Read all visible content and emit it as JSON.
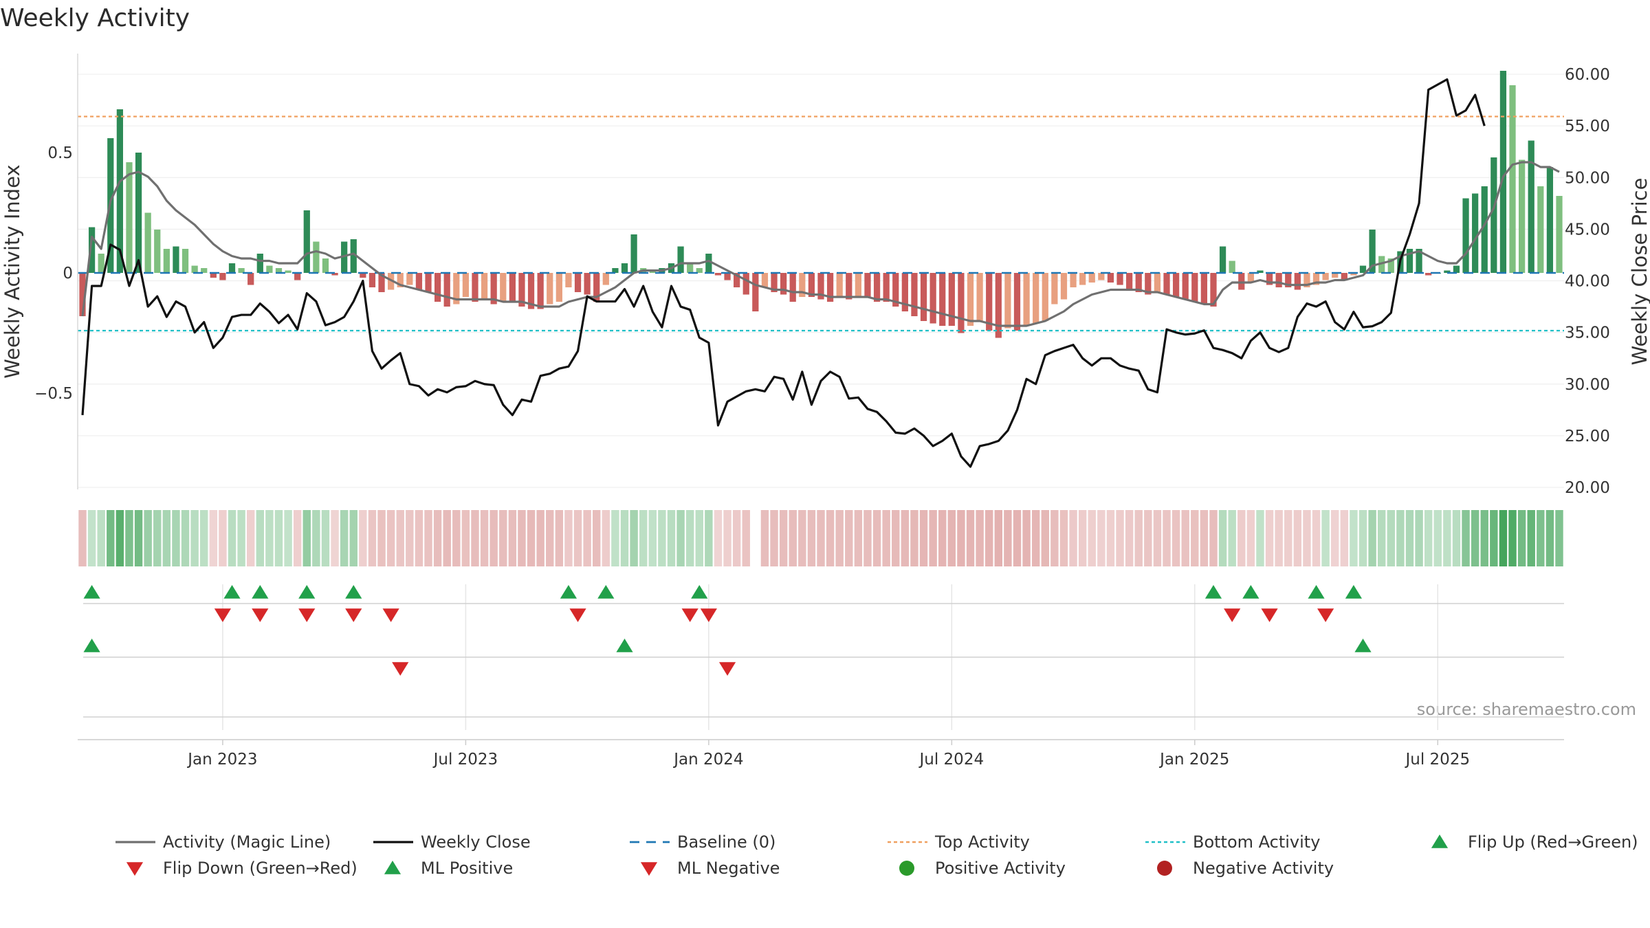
{
  "chart_data": {
    "type": "bar",
    "title": "Weekly Activity",
    "ylabel_left": "Weekly Activity Index",
    "ylabel_right": "Weekly Close Price",
    "source": "source: sharemaestro.com",
    "x_ticks": [
      {
        "label": "Jan 2023",
        "week": 15
      },
      {
        "label": "Jul 2023",
        "week": 41
      },
      {
        "label": "Jan 2024",
        "week": 67
      },
      {
        "label": "Jul 2024",
        "week": 93
      },
      {
        "label": "Jan 2025",
        "week": 119
      },
      {
        "label": "Jul 2025",
        "week": 145
      }
    ],
    "left_axis": {
      "ylim": [
        -0.9,
        0.9
      ],
      "ticks": [
        {
          "v": 0.5,
          "label": "0.5"
        },
        {
          "v": 0,
          "label": "0"
        },
        {
          "v": -0.5,
          "label": "−0.5"
        }
      ]
    },
    "right_axis": {
      "ylim": [
        20,
        60
      ],
      "ticks": [
        {
          "v": 60,
          "label": "60.00"
        },
        {
          "v": 55,
          "label": "55.00"
        },
        {
          "v": 50,
          "label": "50.00"
        },
        {
          "v": 45,
          "label": "45.00"
        },
        {
          "v": 40,
          "label": "40.00"
        },
        {
          "v": 35,
          "label": "35.00"
        },
        {
          "v": 30,
          "label": "30.00"
        },
        {
          "v": 25,
          "label": "25.00"
        },
        {
          "v": 20,
          "label": "20.00"
        }
      ]
    },
    "top_activity": 0.65,
    "bottom_activity": -0.24,
    "activity_bars": [
      -0.18,
      0.19,
      0.08,
      0.56,
      0.68,
      0.46,
      0.5,
      0.25,
      0.18,
      0.1,
      0.11,
      0.1,
      0.03,
      0.02,
      -0.02,
      -0.03,
      0.04,
      0.02,
      -0.05,
      0.08,
      0.03,
      0.02,
      0.01,
      -0.03,
      0.26,
      0.13,
      0.06,
      -0.01,
      0.13,
      0.14,
      -0.02,
      -0.06,
      -0.08,
      -0.07,
      -0.06,
      -0.05,
      -0.07,
      -0.08,
      -0.12,
      -0.14,
      -0.13,
      -0.1,
      -0.12,
      -0.11,
      -0.13,
      -0.12,
      -0.12,
      -0.14,
      -0.15,
      -0.15,
      -0.13,
      -0.12,
      -0.06,
      -0.08,
      -0.09,
      -0.12,
      -0.05,
      0.02,
      0.04,
      0.16,
      0.02,
      0.01,
      0.02,
      0.04,
      0.11,
      0.04,
      0.02,
      0.08,
      -0.01,
      -0.03,
      -0.06,
      -0.09,
      -0.16,
      -0.06,
      -0.08,
      -0.09,
      -0.12,
      -0.1,
      -0.1,
      -0.11,
      -0.12,
      -0.1,
      -0.11,
      -0.1,
      -0.1,
      -0.12,
      -0.12,
      -0.14,
      -0.16,
      -0.18,
      -0.2,
      -0.21,
      -0.22,
      -0.22,
      -0.25,
      -0.22,
      -0.2,
      -0.24,
      -0.27,
      -0.23,
      -0.24,
      -0.22,
      -0.21,
      -0.2,
      -0.13,
      -0.11,
      -0.06,
      -0.05,
      -0.04,
      -0.03,
      -0.04,
      -0.05,
      -0.07,
      -0.08,
      -0.09,
      -0.08,
      -0.09,
      -0.1,
      -0.11,
      -0.12,
      -0.13,
      -0.14,
      0.11,
      0.05,
      -0.07,
      -0.04,
      0.01,
      -0.05,
      -0.06,
      -0.06,
      -0.07,
      -0.06,
      -0.05,
      -0.03,
      -0.02,
      -0.03,
      -0.01,
      0.03,
      0.18,
      0.07,
      0.06,
      0.09,
      0.1,
      0.1,
      -0.01,
      0.0,
      0.01,
      0.03,
      0.31,
      0.33,
      0.36,
      0.48,
      0.84,
      0.78,
      0.47,
      0.55,
      0.36,
      0.44,
      0.32
    ],
    "magic_line": [
      -0.18,
      0.15,
      0.1,
      0.3,
      0.38,
      0.41,
      0.42,
      0.4,
      0.36,
      0.3,
      0.26,
      0.23,
      0.2,
      0.16,
      0.12,
      0.09,
      0.07,
      0.06,
      0.06,
      0.05,
      0.05,
      0.04,
      0.04,
      0.04,
      0.08,
      0.09,
      0.08,
      0.06,
      0.07,
      0.08,
      0.05,
      0.02,
      -0.01,
      -0.03,
      -0.05,
      -0.06,
      -0.07,
      -0.08,
      -0.09,
      -0.1,
      -0.11,
      -0.11,
      -0.11,
      -0.11,
      -0.11,
      -0.12,
      -0.12,
      -0.12,
      -0.13,
      -0.14,
      -0.14,
      -0.14,
      -0.12,
      -0.11,
      -0.1,
      -0.1,
      -0.08,
      -0.06,
      -0.03,
      0.0,
      0.01,
      0.01,
      0.01,
      0.02,
      0.04,
      0.04,
      0.04,
      0.05,
      0.03,
      0.01,
      -0.01,
      -0.03,
      -0.05,
      -0.06,
      -0.07,
      -0.07,
      -0.08,
      -0.08,
      -0.09,
      -0.09,
      -0.1,
      -0.1,
      -0.1,
      -0.1,
      -0.1,
      -0.11,
      -0.11,
      -0.12,
      -0.13,
      -0.14,
      -0.15,
      -0.16,
      -0.17,
      -0.18,
      -0.19,
      -0.2,
      -0.2,
      -0.21,
      -0.22,
      -0.22,
      -0.22,
      -0.22,
      -0.21,
      -0.2,
      -0.18,
      -0.16,
      -0.13,
      -0.11,
      -0.09,
      -0.08,
      -0.07,
      -0.07,
      -0.07,
      -0.07,
      -0.08,
      -0.08,
      -0.09,
      -0.1,
      -0.11,
      -0.12,
      -0.13,
      -0.13,
      -0.07,
      -0.04,
      -0.04,
      -0.04,
      -0.03,
      -0.04,
      -0.04,
      -0.05,
      -0.05,
      -0.05,
      -0.04,
      -0.04,
      -0.03,
      -0.03,
      -0.02,
      -0.01,
      0.03,
      0.04,
      0.05,
      0.07,
      0.08,
      0.09,
      0.07,
      0.05,
      0.04,
      0.04,
      0.08,
      0.14,
      0.2,
      0.27,
      0.4,
      0.45,
      0.46,
      0.46,
      0.44,
      0.44,
      0.42
    ],
    "weekly_close": [
      27.0,
      39.5,
      39.5,
      43.5,
      43.0,
      39.5,
      42.0,
      37.5,
      38.5,
      36.5,
      38.0,
      37.5,
      35.0,
      36.0,
      33.5,
      34.5,
      36.5,
      36.7,
      36.7,
      37.8,
      37.0,
      35.9,
      36.7,
      35.3,
      38.8,
      38.0,
      35.7,
      36.0,
      36.5,
      38.0,
      40.0,
      33.2,
      31.5,
      32.3,
      33.0,
      30.0,
      29.8,
      28.9,
      29.5,
      29.2,
      29.7,
      29.8,
      30.3,
      30.0,
      29.9,
      28.0,
      27.0,
      28.5,
      28.3,
      30.8,
      31.0,
      31.5,
      31.7,
      33.2,
      38.5,
      38.0,
      38.0,
      38.0,
      39.2,
      37.5,
      39.5,
      37.0,
      35.5,
      39.5,
      37.5,
      37.2,
      34.5,
      34.0,
      26.0,
      28.3,
      28.8,
      29.3,
      29.5,
      29.3,
      30.7,
      30.5,
      28.5,
      31.2,
      28.0,
      30.3,
      31.2,
      30.7,
      28.6,
      28.7,
      27.6,
      27.3,
      26.4,
      25.3,
      25.2,
      25.7,
      25.0,
      24.0,
      24.5,
      25.2,
      23.0,
      22.0,
      24.0,
      24.2,
      24.5,
      25.5,
      27.5,
      30.5,
      30.0,
      32.8,
      33.2,
      33.5,
      33.8,
      32.5,
      31.8,
      32.5,
      32.5,
      31.8,
      31.5,
      31.3,
      29.5,
      29.2,
      35.3,
      35.0,
      34.8,
      34.9,
      35.2,
      33.5,
      33.3,
      33.0,
      32.5,
      34.2,
      35.0,
      33.5,
      33.1,
      33.5,
      36.5,
      37.8,
      37.5,
      38.0,
      36.0,
      35.3,
      37.0,
      35.5,
      35.6,
      36.0,
      36.9,
      42.0,
      44.5,
      47.5,
      58.5,
      59.0,
      59.5,
      56.0,
      56.5,
      58.0,
      55.0
    ],
    "heat_values": [
      -0.3,
      0.15,
      0.18,
      0.55,
      0.68,
      0.5,
      0.55,
      0.35,
      0.3,
      0.28,
      0.28,
      0.25,
      0.2,
      0.18,
      -0.15,
      -0.18,
      0.2,
      0.18,
      -0.18,
      0.2,
      0.18,
      0.18,
      0.15,
      -0.18,
      0.38,
      0.25,
      0.2,
      -0.15,
      0.28,
      0.3,
      -0.18,
      -0.25,
      -0.28,
      -0.26,
      -0.25,
      -0.24,
      -0.26,
      -0.27,
      -0.3,
      -0.32,
      -0.31,
      -0.28,
      -0.3,
      -0.29,
      -0.31,
      -0.3,
      -0.3,
      -0.32,
      -0.33,
      -0.33,
      -0.31,
      -0.3,
      -0.22,
      -0.25,
      -0.26,
      -0.3,
      -0.2,
      0.16,
      0.2,
      0.3,
      0.18,
      0.16,
      0.18,
      0.2,
      0.28,
      0.2,
      0.18,
      0.25,
      -0.15,
      -0.18,
      -0.22,
      -0.26,
      null,
      -0.3,
      -0.3,
      -0.3,
      -0.31,
      -0.3,
      -0.3,
      -0.3,
      -0.31,
      -0.3,
      -0.3,
      -0.3,
      -0.3,
      -0.31,
      -0.31,
      -0.32,
      -0.33,
      -0.34,
      -0.35,
      -0.35,
      -0.36,
      -0.36,
      -0.37,
      -0.36,
      -0.35,
      -0.37,
      -0.38,
      -0.36,
      -0.37,
      -0.36,
      -0.35,
      -0.34,
      -0.3,
      -0.28,
      -0.22,
      -0.2,
      -0.18,
      -0.17,
      -0.18,
      -0.2,
      -0.22,
      -0.24,
      -0.25,
      -0.24,
      -0.25,
      -0.26,
      -0.27,
      -0.28,
      -0.29,
      -0.3,
      0.22,
      0.18,
      -0.2,
      -0.18,
      0.16,
      -0.18,
      -0.19,
      -0.19,
      -0.2,
      -0.19,
      -0.18,
      0.15,
      -0.16,
      -0.17,
      0.15,
      0.18,
      0.3,
      0.22,
      0.22,
      0.25,
      0.26,
      0.26,
      0.17,
      0.16,
      0.17,
      0.2,
      0.45,
      0.5,
      0.52,
      0.6,
      0.78,
      0.72,
      0.55,
      0.62,
      0.5,
      0.55,
      0.48
    ],
    "flip_up": [
      1,
      16,
      19,
      24,
      29,
      52,
      56,
      66,
      121,
      125,
      132,
      136
    ],
    "flip_down": [
      15,
      19,
      24,
      29,
      33,
      53,
      65,
      67,
      123,
      127,
      133
    ],
    "ml_positive": [
      1,
      58,
      137
    ],
    "ml_negative": [
      34,
      69
    ],
    "colors": {
      "pos_dark": "#2e8b57",
      "pos_light": "#7fbf7f",
      "neg_dark": "#c85a5a",
      "neg_light": "#e8a080",
      "magic_line": "#707070",
      "close_line": "#111111",
      "baseline": "#1f77b4",
      "top_line": "#f0a060",
      "bottom_line": "#20c0c8",
      "marker_up": "#21a04a",
      "marker_down": "#d62728",
      "dot_pos": "#2a9a2a",
      "dot_neg": "#b22222"
    },
    "legend": [
      {
        "key": "magic",
        "label": "Activity (Magic Line)"
      },
      {
        "key": "close",
        "label": "Weekly Close"
      },
      {
        "key": "baseline",
        "label": "Baseline (0)"
      },
      {
        "key": "top",
        "label": "Top Activity"
      },
      {
        "key": "bottom",
        "label": "Bottom Activity"
      },
      {
        "key": "flipup",
        "label": "Flip Up (Red→Green)"
      },
      {
        "key": "flipdown",
        "label": "Flip Down (Green→Red)"
      },
      {
        "key": "mlpos",
        "label": "ML Positive"
      },
      {
        "key": "mlneg",
        "label": "ML Negative"
      },
      {
        "key": "pos",
        "label": "Positive Activity"
      },
      {
        "key": "neg",
        "label": "Negative Activity"
      }
    ]
  }
}
